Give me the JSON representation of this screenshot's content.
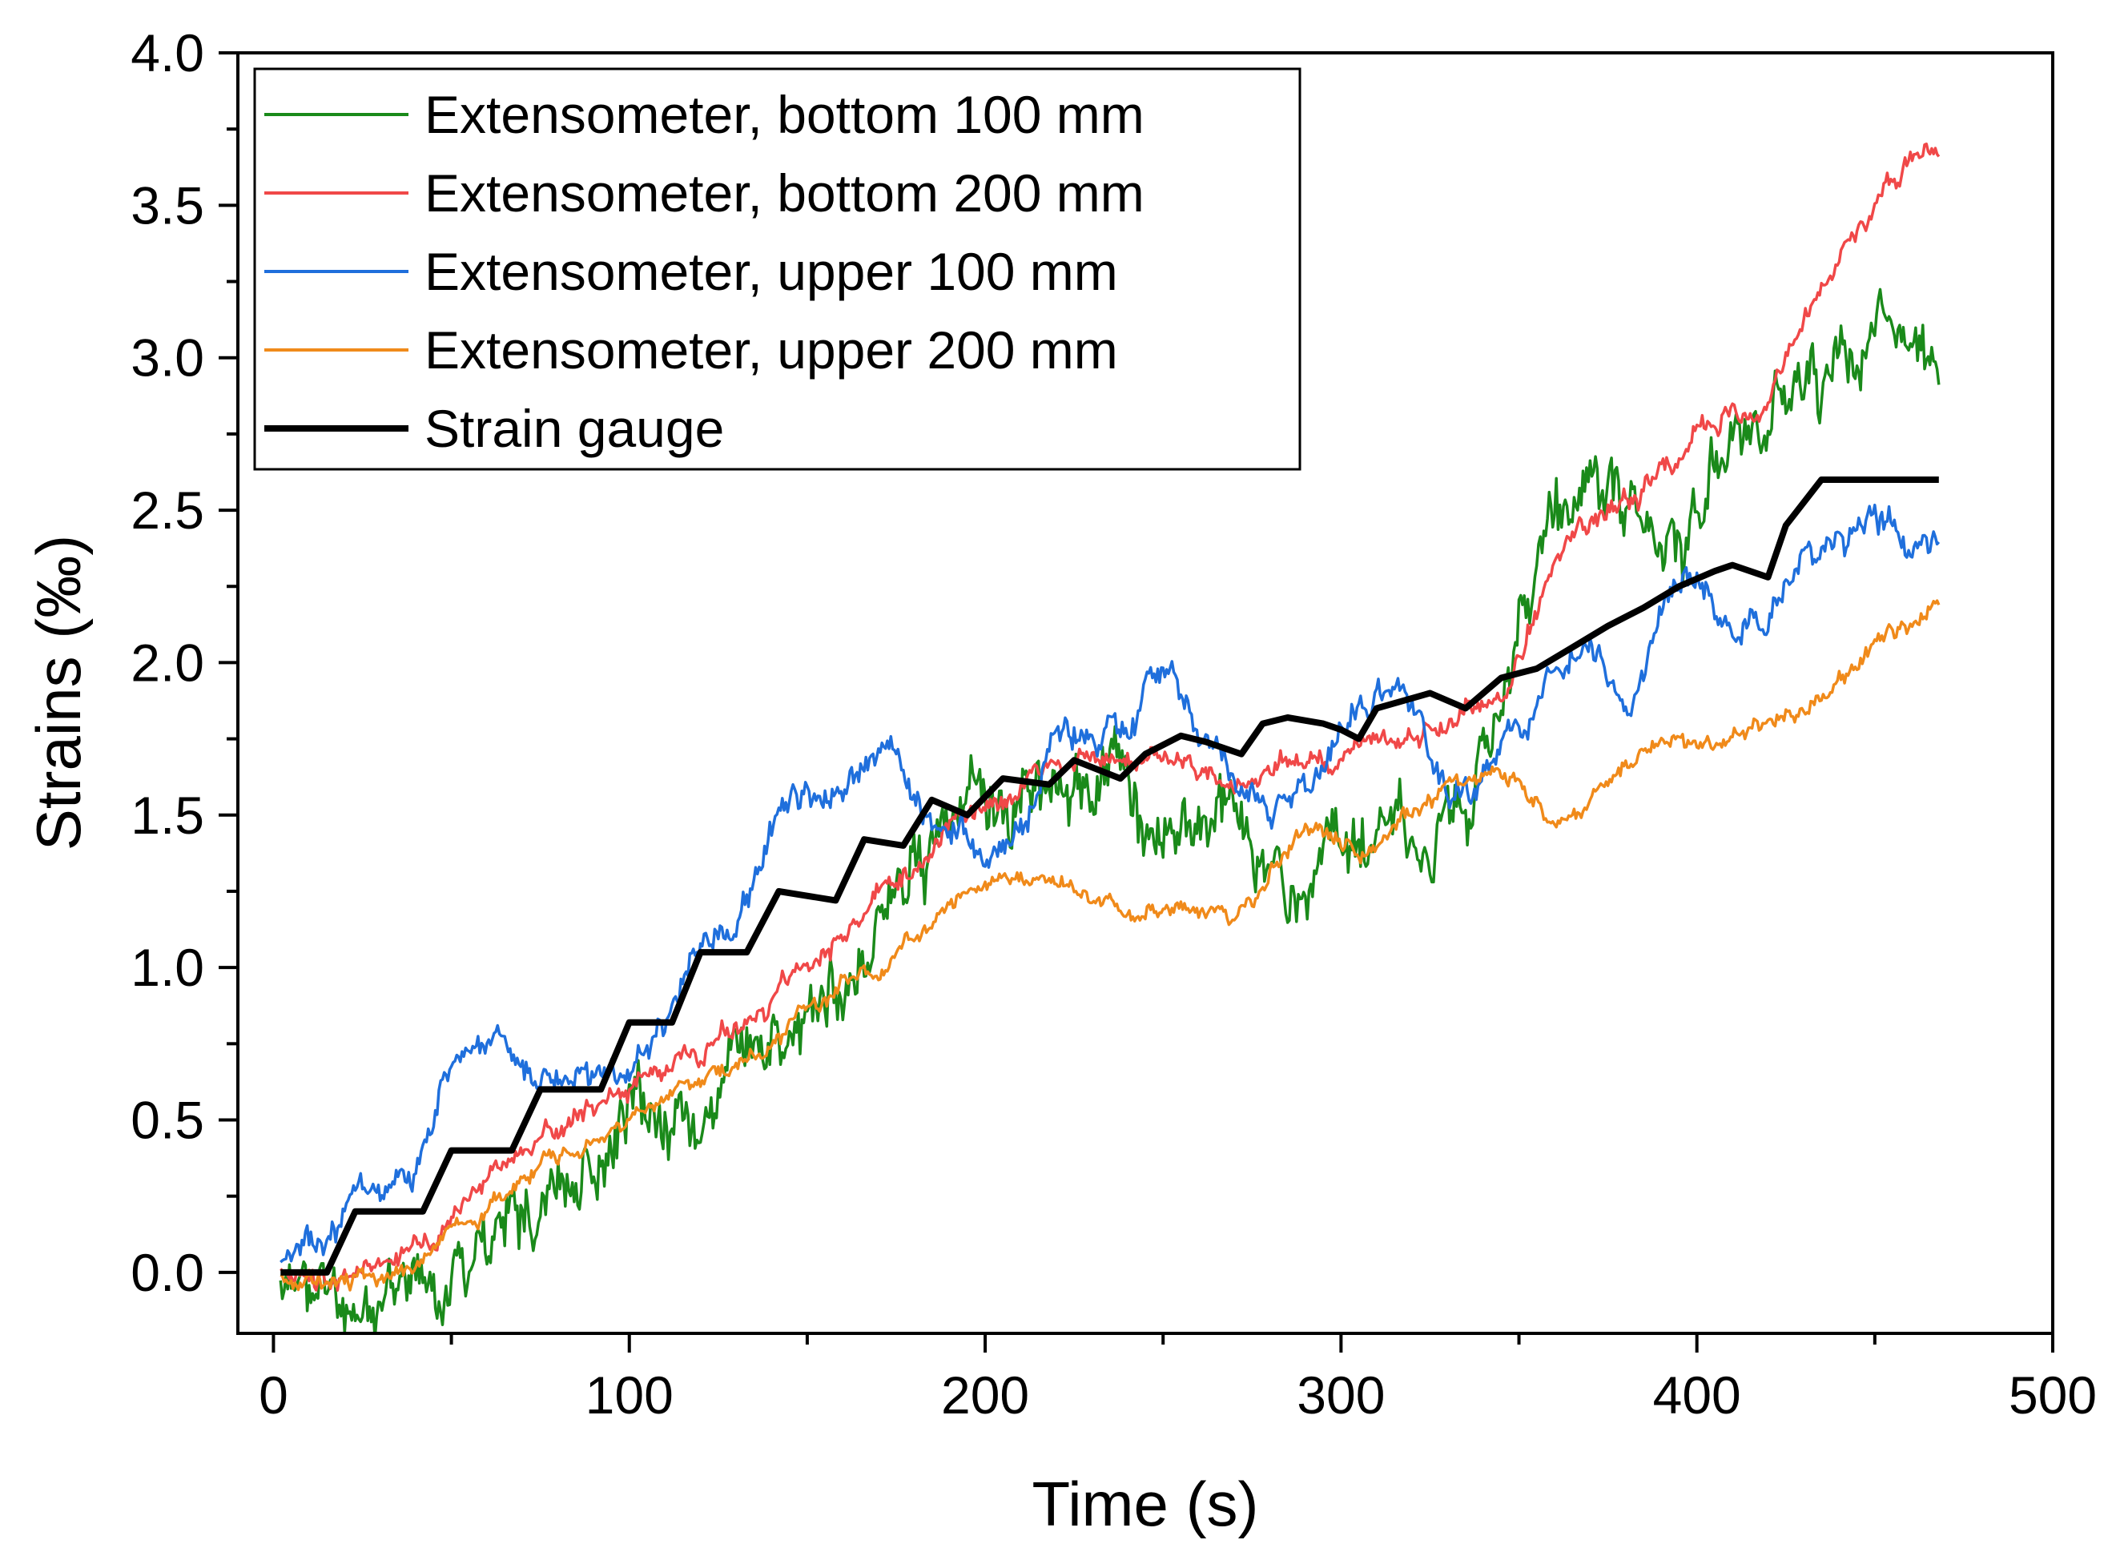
{
  "chart_data": {
    "type": "line",
    "title": "",
    "xlabel": "Time (s)",
    "ylabel": "Strains (‰)",
    "xlim": [
      -10,
      500
    ],
    "ylim": [
      -0.2,
      4.0
    ],
    "x_ticks": [
      0,
      100,
      200,
      300,
      400,
      500
    ],
    "x_tick_labels": [
      "0",
      "100",
      "200",
      "300",
      "400",
      "500"
    ],
    "y_ticks": [
      0.0,
      0.5,
      1.0,
      1.5,
      2.0,
      2.5,
      3.0,
      3.5,
      4.0
    ],
    "y_tick_labels": [
      "0.0",
      "0.5",
      "1.0",
      "1.5",
      "2.0",
      "2.5",
      "3.0",
      "3.5",
      "4.0"
    ],
    "grid": false,
    "legend_position": "top-left",
    "series": [
      {
        "name": "Extensometer, bottom 100 mm",
        "color": "#1a8a1a",
        "noise": 0.13,
        "seed": 11,
        "x": [
          2,
          20,
          40,
          60,
          80,
          100,
          120,
          140,
          160,
          180,
          200,
          220,
          240,
          260,
          280,
          300,
          320,
          340,
          350,
          360,
          370,
          380,
          390,
          400,
          410,
          420,
          430,
          440,
          450,
          460,
          468
        ],
        "y": [
          -0.05,
          -0.08,
          -0.05,
          0.15,
          0.3,
          0.45,
          0.55,
          0.75,
          1.0,
          1.3,
          1.55,
          1.65,
          1.6,
          1.5,
          1.35,
          1.35,
          1.45,
          1.7,
          2.1,
          2.35,
          2.5,
          2.5,
          2.45,
          2.55,
          2.7,
          2.75,
          3.0,
          3.05,
          3.1,
          3.15,
          3.05
        ]
      },
      {
        "name": "Extensometer, bottom 200 mm",
        "color": "#f04848",
        "noise": 0.045,
        "seed": 23,
        "x": [
          2,
          20,
          40,
          60,
          80,
          100,
          120,
          140,
          160,
          180,
          200,
          220,
          240,
          260,
          280,
          300,
          320,
          340,
          350,
          360,
          370,
          380,
          390,
          400,
          410,
          420,
          430,
          440,
          450,
          460,
          468
        ],
        "y": [
          -0.02,
          -0.05,
          0.1,
          0.3,
          0.5,
          0.62,
          0.75,
          0.9,
          1.1,
          1.35,
          1.55,
          1.65,
          1.7,
          1.65,
          1.65,
          1.7,
          1.8,
          1.85,
          2.0,
          2.3,
          2.45,
          2.55,
          2.62,
          2.7,
          2.78,
          2.85,
          3.1,
          3.3,
          3.5,
          3.62,
          3.65
        ]
      },
      {
        "name": "Extensometer, upper 100 mm",
        "color": "#1f6fdc",
        "noise": 0.06,
        "seed": 37,
        "x": [
          2,
          15,
          25,
          40,
          50,
          60,
          70,
          80,
          90,
          100,
          110,
          120,
          130,
          140,
          150,
          160,
          170,
          180,
          190,
          200,
          210,
          220,
          230,
          240,
          250,
          260,
          270,
          280,
          290,
          300,
          310,
          320,
          330,
          340,
          350,
          360,
          370,
          380,
          390,
          400,
          410,
          420,
          430,
          440,
          450,
          460,
          468
        ],
        "y": [
          0.0,
          0.1,
          0.3,
          0.3,
          0.75,
          0.8,
          0.72,
          0.65,
          0.6,
          0.65,
          0.8,
          1.1,
          1.15,
          1.45,
          1.6,
          1.65,
          1.75,
          1.55,
          1.45,
          1.3,
          1.4,
          1.7,
          1.75,
          1.8,
          2.0,
          1.75,
          1.6,
          1.5,
          1.6,
          1.75,
          1.9,
          1.85,
          1.55,
          1.6,
          1.75,
          2.0,
          2.1,
          1.9,
          2.15,
          2.3,
          2.05,
          2.15,
          2.35,
          2.4,
          2.45,
          2.35,
          2.4
        ]
      },
      {
        "name": "Extensometer, upper 200 mm",
        "color": "#f08a1a",
        "noise": 0.035,
        "seed": 53,
        "x": [
          2,
          20,
          40,
          60,
          80,
          100,
          120,
          140,
          150,
          160,
          170,
          180,
          190,
          200,
          210,
          220,
          230,
          240,
          250,
          260,
          270,
          280,
          290,
          300,
          310,
          320,
          330,
          340,
          350,
          360,
          370,
          380,
          390,
          400,
          410,
          420,
          430,
          440,
          450,
          460,
          468
        ],
        "y": [
          0.0,
          -0.05,
          0.05,
          0.2,
          0.4,
          0.5,
          0.65,
          0.75,
          0.85,
          0.95,
          1.0,
          1.1,
          1.2,
          1.25,
          1.3,
          1.28,
          1.22,
          1.18,
          1.2,
          1.22,
          1.2,
          1.3,
          1.45,
          1.4,
          1.38,
          1.5,
          1.6,
          1.65,
          1.6,
          1.5,
          1.55,
          1.7,
          1.75,
          1.7,
          1.75,
          1.8,
          1.85,
          1.95,
          2.05,
          2.15,
          2.25
        ]
      },
      {
        "name": "Strain gauge",
        "color": "#000000",
        "noise": 0,
        "seed": 0,
        "x": [
          2,
          15,
          23,
          42,
          50,
          67,
          75,
          92,
          100,
          112,
          120,
          133,
          142,
          158,
          166,
          177,
          185,
          195,
          205,
          218,
          225,
          238,
          245,
          255,
          262,
          272,
          278,
          285,
          295,
          300,
          305,
          310,
          325,
          335,
          345,
          355,
          365,
          375,
          385,
          395,
          405,
          410,
          420,
          425,
          435,
          445,
          455,
          468
        ],
        "y": [
          0.0,
          0.0,
          0.2,
          0.2,
          0.4,
          0.4,
          0.6,
          0.6,
          0.82,
          0.82,
          1.05,
          1.05,
          1.25,
          1.22,
          1.42,
          1.4,
          1.55,
          1.5,
          1.62,
          1.6,
          1.68,
          1.62,
          1.7,
          1.76,
          1.74,
          1.7,
          1.8,
          1.82,
          1.8,
          1.78,
          1.75,
          1.85,
          1.9,
          1.85,
          1.95,
          1.98,
          2.05,
          2.12,
          2.18,
          2.25,
          2.3,
          2.32,
          2.28,
          2.45,
          2.6,
          2.6,
          2.6,
          2.6
        ]
      }
    ]
  }
}
